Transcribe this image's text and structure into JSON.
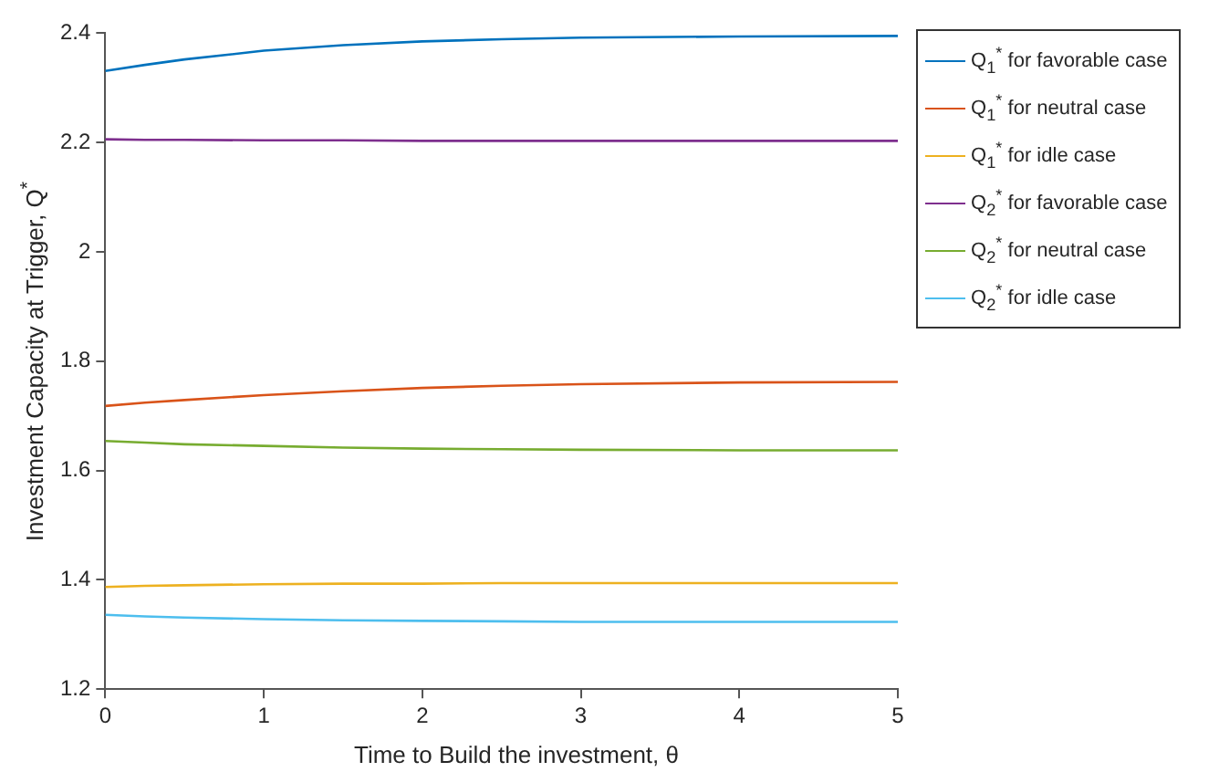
{
  "chart_data": {
    "type": "line",
    "xlabel": "Time to Build the investment, θ",
    "ylabel": "Investment Capacity at Trigger, Q$^{*}$",
    "x": [
      0,
      0.25,
      0.5,
      1,
      1.5,
      2,
      2.5,
      3,
      4,
      5
    ],
    "xlim": [
      0,
      5
    ],
    "xticks": [
      0,
      1,
      2,
      3,
      4,
      5
    ],
    "ylim": [
      1.2,
      2.4
    ],
    "yticks": [
      1.2,
      1.4,
      1.6,
      1.8,
      2,
      2.2,
      2.4
    ],
    "grid": false,
    "legend": "top right",
    "marker": "none",
    "line_style": "solid",
    "series": [
      {
        "name": "Q$_{1}$$^{*}$ for favorable case",
        "color": "#0072bd",
        "values": [
          2.331,
          2.342,
          2.352,
          2.368,
          2.378,
          2.385,
          2.389,
          2.392,
          2.394,
          2.395
        ]
      },
      {
        "name": "Q$_{1}$$^{*}$ for neutral case",
        "color": "#d95319",
        "values": [
          1.718,
          1.724,
          1.729,
          1.738,
          1.745,
          1.751,
          1.755,
          1.758,
          1.761,
          1.762
        ]
      },
      {
        "name": "Q$_{1}$$^{*}$ for idle case",
        "color": "#edb120",
        "values": [
          1.387,
          1.389,
          1.39,
          1.392,
          1.393,
          1.393,
          1.394,
          1.394,
          1.394,
          1.394
        ]
      },
      {
        "name": "Q$_{2}$$^{*}$ for favorable case",
        "color": "#7e2f8e",
        "values": [
          2.206,
          2.205,
          2.205,
          2.204,
          2.204,
          2.203,
          2.203,
          2.203,
          2.203,
          2.203
        ]
      },
      {
        "name": "Q$_{2}$$^{*}$ for neutral case",
        "color": "#77ac30",
        "values": [
          1.654,
          1.651,
          1.648,
          1.645,
          1.642,
          1.64,
          1.639,
          1.638,
          1.637,
          1.637
        ]
      },
      {
        "name": "Q$_{2}$$^{*}$ for idle case",
        "color": "#4dbeee",
        "values": [
          1.336,
          1.333,
          1.331,
          1.328,
          1.326,
          1.325,
          1.324,
          1.323,
          1.323,
          1.323
        ]
      }
    ]
  }
}
